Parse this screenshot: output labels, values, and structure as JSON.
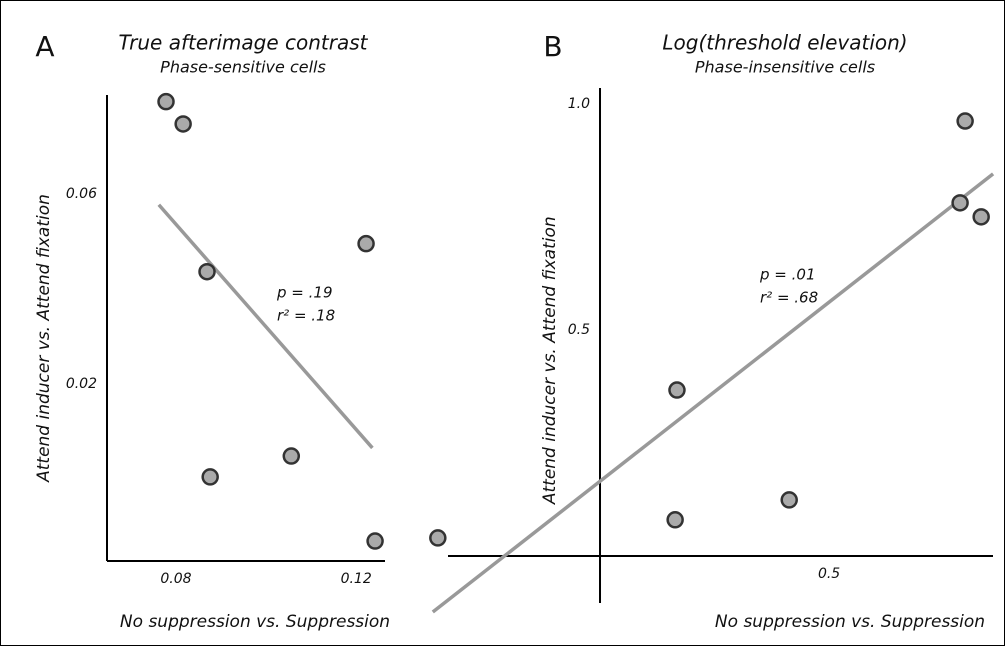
{
  "chart_data": [
    {
      "type": "scatter",
      "label": "A",
      "title": "True afterimage contrast",
      "subtitle": "Phase-sensitive cells",
      "xlabel": "No suppression vs. Suppression",
      "ylabel": "Attend inducer vs. Attend fixation",
      "annotations": [
        "p = .19",
        "r² = .18"
      ],
      "x": [
        0.0778,
        0.0816,
        0.0869,
        0.0876,
        0.1056,
        0.1222,
        0.1242
      ],
      "y": [
        0.0794,
        0.0747,
        0.0436,
        0.0004,
        0.0048,
        0.0495,
        -0.0131
      ],
      "fit": {
        "x": [
          0.0762,
          0.1236
        ],
        "y": [
          0.0577,
          0.0065
        ]
      },
      "xlim": [
        0.0647,
        0.1264
      ],
      "ylim": [
        -0.0173,
        0.0808
      ],
      "xticks": [
        0.08,
        0.12
      ],
      "yticks": [
        0.02,
        0.06
      ],
      "color": "#aaaaaa",
      "fit_color": "#999999"
    },
    {
      "type": "scatter",
      "label": "B",
      "title": "Log(threshold elevation)",
      "subtitle": "Phase-insensitive cells",
      "xlabel": "No suppression vs. Suppression",
      "ylabel": "Attend inducer vs. Attend fixation",
      "annotations": [
        "p = .01",
        "r² = .68"
      ],
      "x": [
        -0.354,
        0.168,
        0.164,
        0.413,
        0.797,
        0.786,
        0.832
      ],
      "y": [
        0.04,
        0.367,
        0.08,
        0.124,
        0.962,
        0.781,
        0.75
      ],
      "fit": {
        "x": [
          -0.365,
          0.858
        ],
        "y": [
          -0.124,
          0.845
        ]
      },
      "xlim": [
        -0.37,
        0.86
      ],
      "ylim": [
        -0.125,
        1.035
      ],
      "xticks": [
        0.5
      ],
      "yticks": [
        0.5,
        {
          "value": 1.0,
          "label": "1.0"
        }
      ],
      "color": "#aaaaaa",
      "fit_color": "#999999"
    }
  ]
}
